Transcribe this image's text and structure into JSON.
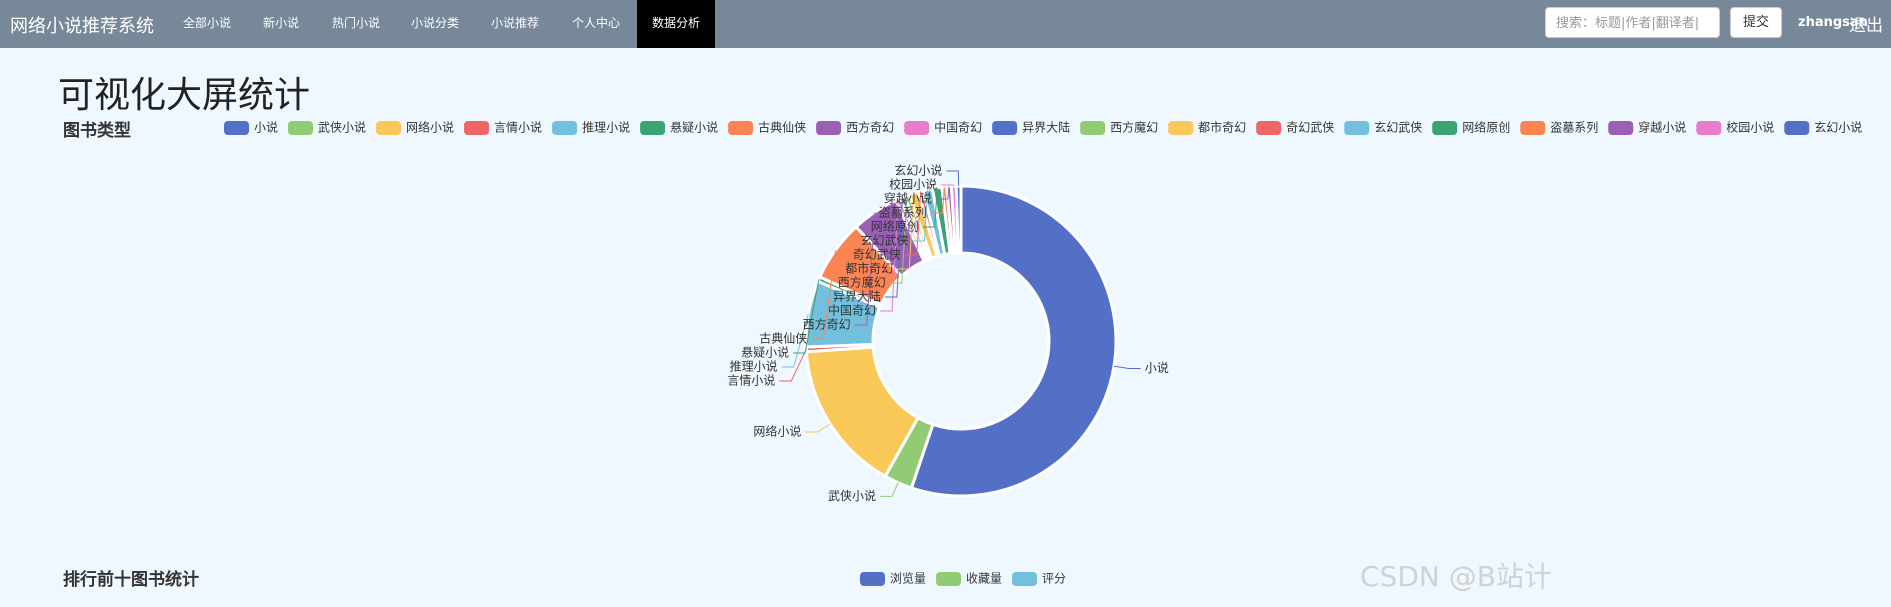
{
  "navbar": {
    "brand": "网络小说推荐系统",
    "items": [
      "全部小说",
      "新小说",
      "热门小说",
      "小说分类",
      "小说推荐",
      "个人中心",
      "数据分析"
    ],
    "search_placeholder": "搜索：标题|作者|翻译者|",
    "submit": "提交",
    "user": "zhangsan",
    "logout": "退出"
  },
  "page_title": "可视化大屏统计",
  "watermark": "CSDN @B站计",
  "chart_data": [
    {
      "type": "pie",
      "title": "图书类型",
      "donut": true,
      "categories": [
        "小说",
        "武侠小说",
        "网络小说",
        "言情小说",
        "推理小说",
        "悬疑小说",
        "古典仙侠",
        "西方奇幻",
        "中国奇幻",
        "异界大陆",
        "西方魔幻",
        "都市奇幻",
        "奇幻武侠",
        "玄幻武侠",
        "网络原创",
        "盗墓系列",
        "穿越小说",
        "校园小说",
        "玄幻小说"
      ],
      "values": [
        112,
        6,
        32,
        1,
        14,
        1,
        13,
        10,
        1,
        1,
        1,
        2,
        1,
        2,
        2,
        1,
        1,
        1,
        1
      ],
      "colors": [
        "#5470c6",
        "#91cc75",
        "#fac858",
        "#ee6666",
        "#73c0de",
        "#3ba272",
        "#fc8452",
        "#9a60b4",
        "#ea7ccc",
        "#5470c6",
        "#91cc75",
        "#fac858",
        "#ee6666",
        "#73c0de",
        "#3ba272",
        "#fc8452",
        "#9a60b4",
        "#ea7ccc",
        "#5470c6"
      ]
    },
    {
      "type": "bar",
      "title": "排行前十图书统计",
      "series": [
        {
          "name": "浏览量",
          "color": "#5470c6"
        },
        {
          "name": "收藏量",
          "color": "#91cc75"
        },
        {
          "name": "评分",
          "color": "#73c0de"
        }
      ]
    }
  ]
}
